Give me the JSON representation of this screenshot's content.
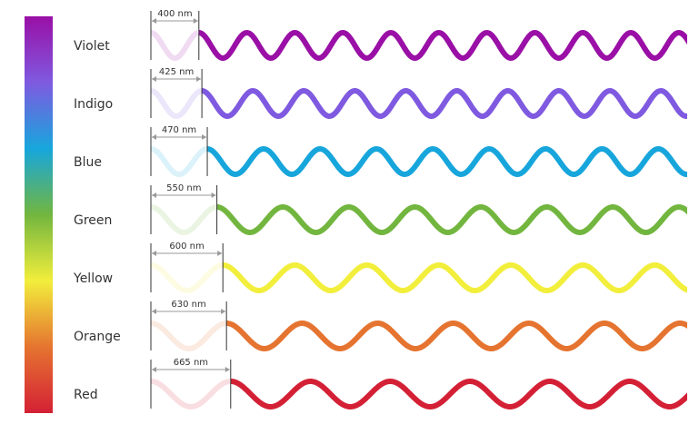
{
  "waves": [
    {
      "name": "Violet",
      "wavelength": 400,
      "label": "400 nm",
      "color": "#9a0fa6"
    },
    {
      "name": "Indigo",
      "wavelength": 425,
      "label": "425 nm",
      "color": "#7f5ae0"
    },
    {
      "name": "Blue",
      "wavelength": 470,
      "label": "470 nm",
      "color": "#17a6dc"
    },
    {
      "name": "Green",
      "wavelength": 550,
      "label": "550 nm",
      "color": "#72b63f"
    },
    {
      "name": "Yellow",
      "wavelength": 600,
      "label": "600 nm",
      "color": "#f2ee3c"
    },
    {
      "name": "Orange",
      "wavelength": 630,
      "label": "630 nm",
      "color": "#e57430"
    },
    {
      "name": "Red",
      "wavelength": 665,
      "label": "665 nm",
      "color": "#d42035"
    }
  ]
}
